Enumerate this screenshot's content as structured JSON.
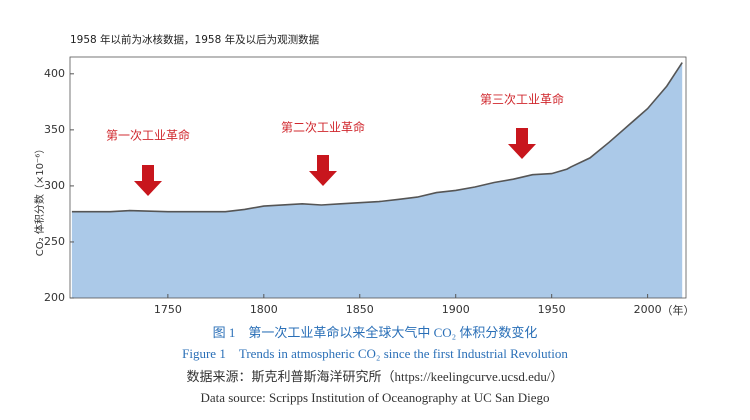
{
  "chart_data": {
    "type": "area",
    "note": "1958 年以前为冰核数据，1958 年及以后为观测数据",
    "y_label": "CO₂ 体积分数（×10⁻⁶）",
    "x_label": "（年）",
    "annotations": [
      "第一次工业革命",
      "第二次工业革命",
      "第三次工业革命"
    ],
    "x": [
      1700,
      1720,
      1730,
      1750,
      1770,
      1780,
      1790,
      1800,
      1820,
      1830,
      1840,
      1850,
      1860,
      1870,
      1880,
      1890,
      1900,
      1910,
      1920,
      1930,
      1940,
      1950,
      1958,
      1960,
      1970,
      1980,
      1990,
      2000,
      2010,
      2018
    ],
    "series": [
      {
        "name": "CO₂",
        "color": "#555555",
        "fill": "#abc9e8",
        "values": [
          277,
          277,
          278,
          277,
          277,
          277,
          279,
          282,
          284,
          283,
          284,
          285,
          286,
          288,
          290,
          294,
          296,
          299,
          303,
          306,
          310,
          311,
          315,
          317,
          325,
          339,
          354,
          369,
          389,
          410
        ]
      }
    ],
    "xlim": [
      1699,
      2020
    ],
    "ylim": [
      200,
      415
    ],
    "xticks": [
      1750,
      1800,
      1850,
      1900,
      1950,
      2000
    ],
    "yticks": [
      200,
      250,
      300,
      350,
      400
    ],
    "captions": [
      "图 1　第一次工业革命以来全球大气中 CO₂ 体积分数变化",
      "Figure 1　Trends in atmospheric CO₂ since the first Industrial Revolution",
      "数据来源：斯克利普斯海洋研究所（https://keelingcurve.ucsd.edu/）",
      "Data source: Scripps Institution of Oceanography at UC San Diego"
    ]
  }
}
